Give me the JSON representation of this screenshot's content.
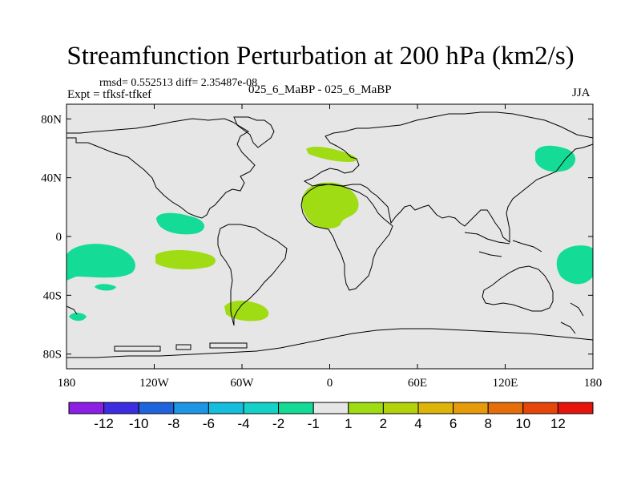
{
  "title": "Streamfunction Perturbation at 200 hPa (km2/s)",
  "stats_line": "rmsd= 0.552513 diff= 2.35487e-08",
  "experiment_line": "Expt = tfksf-tfkef",
  "case_line": "025_6_MaBP - 025_6_MaBP",
  "season": "JJA",
  "map": {
    "background_color": "#e6e6e6",
    "lat_ticks": [
      "80N",
      "40N",
      "0",
      "40S",
      "80S"
    ],
    "lon_ticks": [
      "180",
      "120W",
      "60W",
      "0",
      "60E",
      "120E",
      "180"
    ],
    "lat_values": [
      80,
      40,
      0,
      -40,
      -80
    ],
    "lon_values": [
      -180,
      -120,
      -60,
      0,
      60,
      120,
      180
    ],
    "lat_range": [
      -90,
      90
    ],
    "lon_range": [
      -180,
      180
    ]
  },
  "colorbar": {
    "colors": [
      "#8c1ee6",
      "#3c2de0",
      "#1e64dc",
      "#1e96e6",
      "#14bedc",
      "#14d2c8",
      "#14dc96",
      "#e6e6e6",
      "#a0dc14",
      "#b4d20a",
      "#dcb40a",
      "#e69b0a",
      "#e66e0a",
      "#e6460a",
      "#e6140a"
    ],
    "labels": [
      "-12",
      "-10",
      "-8",
      "-6",
      "-4",
      "-2",
      "-1",
      "1",
      "2",
      "4",
      "6",
      "8",
      "10",
      "12"
    ]
  },
  "anomaly_regions": [
    {
      "name": "west-pacific-north-positive",
      "sign": "negative",
      "color": "#14dc96"
    },
    {
      "name": "tropical-pacific-south-negative",
      "sign": "negative",
      "color": "#14dc96"
    },
    {
      "name": "south-america-positive",
      "sign": "positive",
      "color": "#a0dc14"
    },
    {
      "name": "north-atlantic-positive",
      "sign": "positive",
      "color": "#a0dc14"
    },
    {
      "name": "africa-positive",
      "sign": "positive",
      "color": "#a0dc14"
    },
    {
      "name": "east-pacific-positive",
      "sign": "positive",
      "color": "#a0dc14"
    }
  ]
}
